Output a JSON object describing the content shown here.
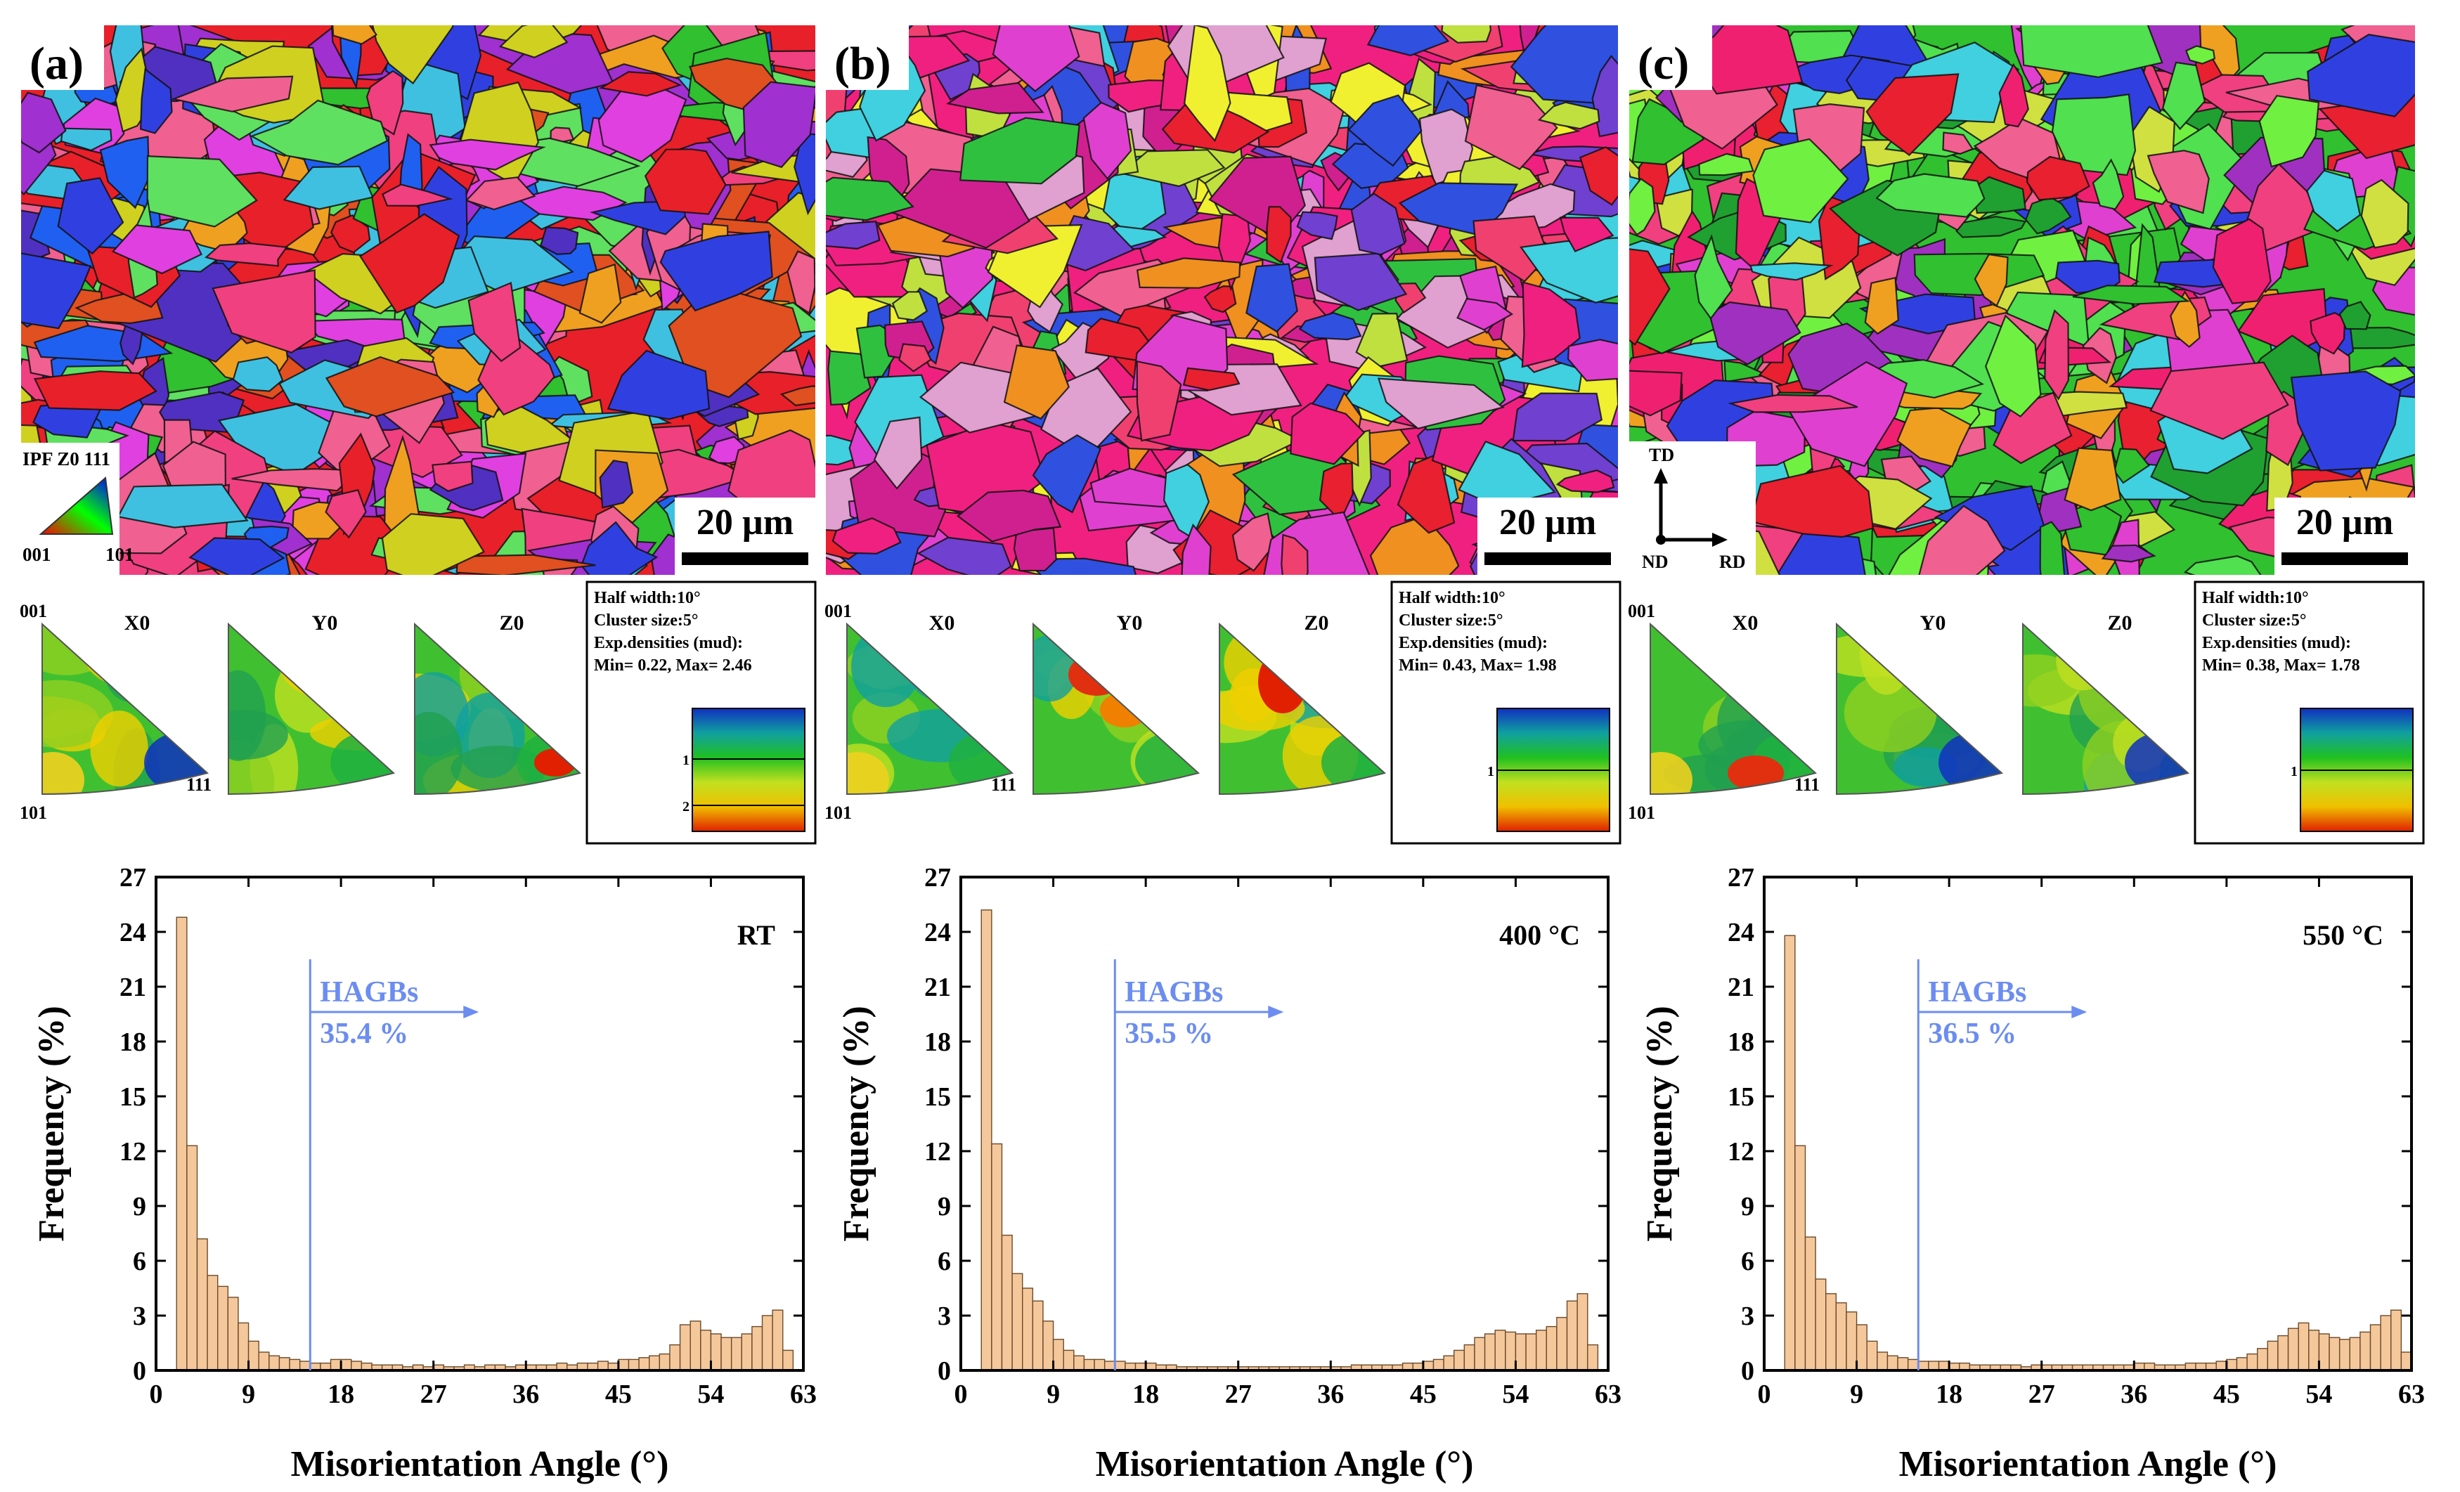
{
  "figure": {
    "palette": {
      "bar_fill": "#f5c89c",
      "bar_stroke": "#6b4a2a",
      "hagb_line": "#6c8df0",
      "hagb_text": "#6c8df0",
      "axis": "#000000",
      "scale_bar": "#000000"
    }
  },
  "ipf_legend": {
    "title": "IPF Z0 111",
    "corner_001": "001",
    "corner_101": "101"
  },
  "axes_triad": {
    "td": "TD",
    "nd": "ND",
    "rd": "RD"
  },
  "panels": [
    {
      "id": "a",
      "label": "(a)",
      "map_theme": "mixed",
      "scale_bar": "20 µm",
      "pole_figures": {
        "labels": [
          "X0",
          "Y0",
          "Z0"
        ],
        "corner_top": "001",
        "corner_bottom": "101",
        "corner_right": "111",
        "themes": [
          "x0a",
          "y0a",
          "z0a"
        ]
      },
      "density_box": {
        "half_width": "Half width:10°",
        "cluster_size": "Cluster size:5°",
        "exp_densities": "Exp.densities (mud):",
        "min_max": "Min= 0.22, Max= 2.46",
        "scale_marks": [
          "1",
          "2"
        ]
      },
      "chart_data": {
        "type": "bar",
        "title": "",
        "annotation": "RT",
        "xlabel": "Misorientation Angle (°)",
        "ylabel": "Frequency (%)",
        "xlim": [
          0,
          63
        ],
        "ylim": [
          0,
          27
        ],
        "xticks": [
          0,
          9,
          18,
          27,
          36,
          45,
          54,
          63
        ],
        "yticks": [
          0,
          3,
          6,
          9,
          12,
          15,
          18,
          21,
          24,
          27
        ],
        "bin_width": 1,
        "bin_start": 2,
        "values": [
          24.8,
          12.3,
          7.2,
          5.2,
          4.6,
          4.0,
          2.6,
          1.6,
          1.0,
          0.8,
          0.7,
          0.6,
          0.5,
          0.4,
          0.4,
          0.6,
          0.6,
          0.5,
          0.4,
          0.3,
          0.3,
          0.3,
          0.2,
          0.3,
          0.2,
          0.3,
          0.2,
          0.2,
          0.3,
          0.2,
          0.3,
          0.3,
          0.2,
          0.3,
          0.3,
          0.3,
          0.3,
          0.4,
          0.3,
          0.4,
          0.4,
          0.5,
          0.4,
          0.6,
          0.6,
          0.7,
          0.8,
          0.9,
          1.4,
          2.5,
          2.7,
          2.2,
          2.0,
          1.8,
          1.8,
          2.0,
          2.4,
          3.0,
          3.3,
          1.1
        ],
        "hagb": {
          "angle": 15,
          "label": "HAGBs",
          "percent": "35.4 %"
        }
      }
    },
    {
      "id": "b",
      "label": "(b)",
      "map_theme": "magenta",
      "scale_bar": "20 µm",
      "pole_figures": {
        "labels": [
          "X0",
          "Y0",
          "Z0"
        ],
        "corner_top": "001",
        "corner_bottom": "101",
        "corner_right": "111",
        "themes": [
          "x0b",
          "y0b",
          "z0b"
        ]
      },
      "density_box": {
        "half_width": "Half width:10°",
        "cluster_size": "Cluster size:5°",
        "exp_densities": "Exp.densities (mud):",
        "min_max": "Min= 0.43, Max= 1.98",
        "scale_marks": [
          "1"
        ]
      },
      "chart_data": {
        "type": "bar",
        "title": "",
        "annotation": "400 °C",
        "xlabel": "Misorientation Angle (°)",
        "ylabel": "Frequency (%)",
        "xlim": [
          0,
          63
        ],
        "ylim": [
          0,
          27
        ],
        "xticks": [
          0,
          9,
          18,
          27,
          36,
          45,
          54,
          63
        ],
        "yticks": [
          0,
          3,
          6,
          9,
          12,
          15,
          18,
          21,
          24,
          27
        ],
        "bin_width": 1,
        "bin_start": 2,
        "values": [
          25.2,
          12.4,
          7.4,
          5.3,
          4.5,
          3.8,
          2.7,
          1.7,
          1.1,
          0.8,
          0.6,
          0.6,
          0.5,
          0.5,
          0.4,
          0.4,
          0.4,
          0.3,
          0.3,
          0.2,
          0.2,
          0.2,
          0.2,
          0.2,
          0.2,
          0.2,
          0.2,
          0.2,
          0.2,
          0.2,
          0.2,
          0.2,
          0.2,
          0.2,
          0.2,
          0.2,
          0.3,
          0.3,
          0.3,
          0.3,
          0.3,
          0.4,
          0.4,
          0.5,
          0.6,
          0.8,
          1.1,
          1.4,
          1.8,
          2.0,
          2.2,
          2.1,
          2.0,
          2.0,
          2.2,
          2.4,
          2.9,
          3.8,
          4.2,
          1.4
        ],
        "hagb": {
          "angle": 15,
          "label": "HAGBs",
          "percent": "35.5 %"
        }
      }
    },
    {
      "id": "c",
      "label": "(c)",
      "map_theme": "green",
      "scale_bar": "20 µm",
      "pole_figures": {
        "labels": [
          "X0",
          "Y0",
          "Z0"
        ],
        "corner_top": "001",
        "corner_bottom": "101",
        "corner_right": "111",
        "themes": [
          "x0c",
          "y0c",
          "z0c"
        ]
      },
      "density_box": {
        "half_width": "Half width:10°",
        "cluster_size": "Cluster size:5°",
        "exp_densities": "Exp.densities (mud):",
        "min_max": "Min= 0.38, Max= 1.78",
        "scale_marks": [
          "1"
        ]
      },
      "chart_data": {
        "type": "bar",
        "title": "",
        "annotation": "550 °C",
        "xlabel": "Misorientation Angle (°)",
        "ylabel": "Frequency (%)",
        "xlim": [
          0,
          63
        ],
        "ylim": [
          0,
          27
        ],
        "xticks": [
          0,
          9,
          18,
          27,
          36,
          45,
          54,
          63
        ],
        "yticks": [
          0,
          3,
          6,
          9,
          12,
          15,
          18,
          21,
          24,
          27
        ],
        "bin_width": 1,
        "bin_start": 2,
        "values": [
          23.8,
          12.3,
          7.3,
          5.0,
          4.2,
          3.7,
          3.2,
          2.5,
          1.6,
          1.0,
          0.8,
          0.7,
          0.6,
          0.5,
          0.5,
          0.5,
          0.4,
          0.4,
          0.3,
          0.3,
          0.3,
          0.3,
          0.3,
          0.2,
          0.3,
          0.3,
          0.3,
          0.3,
          0.3,
          0.3,
          0.3,
          0.3,
          0.3,
          0.3,
          0.4,
          0.4,
          0.3,
          0.3,
          0.3,
          0.4,
          0.4,
          0.4,
          0.5,
          0.6,
          0.7,
          0.9,
          1.2,
          1.6,
          1.9,
          2.3,
          2.6,
          2.2,
          2.0,
          1.8,
          1.7,
          1.8,
          2.1,
          2.5,
          3.0,
          3.3,
          1.0
        ],
        "hagb": {
          "angle": 15,
          "label": "HAGBs",
          "percent": "36.5 %"
        }
      }
    }
  ]
}
